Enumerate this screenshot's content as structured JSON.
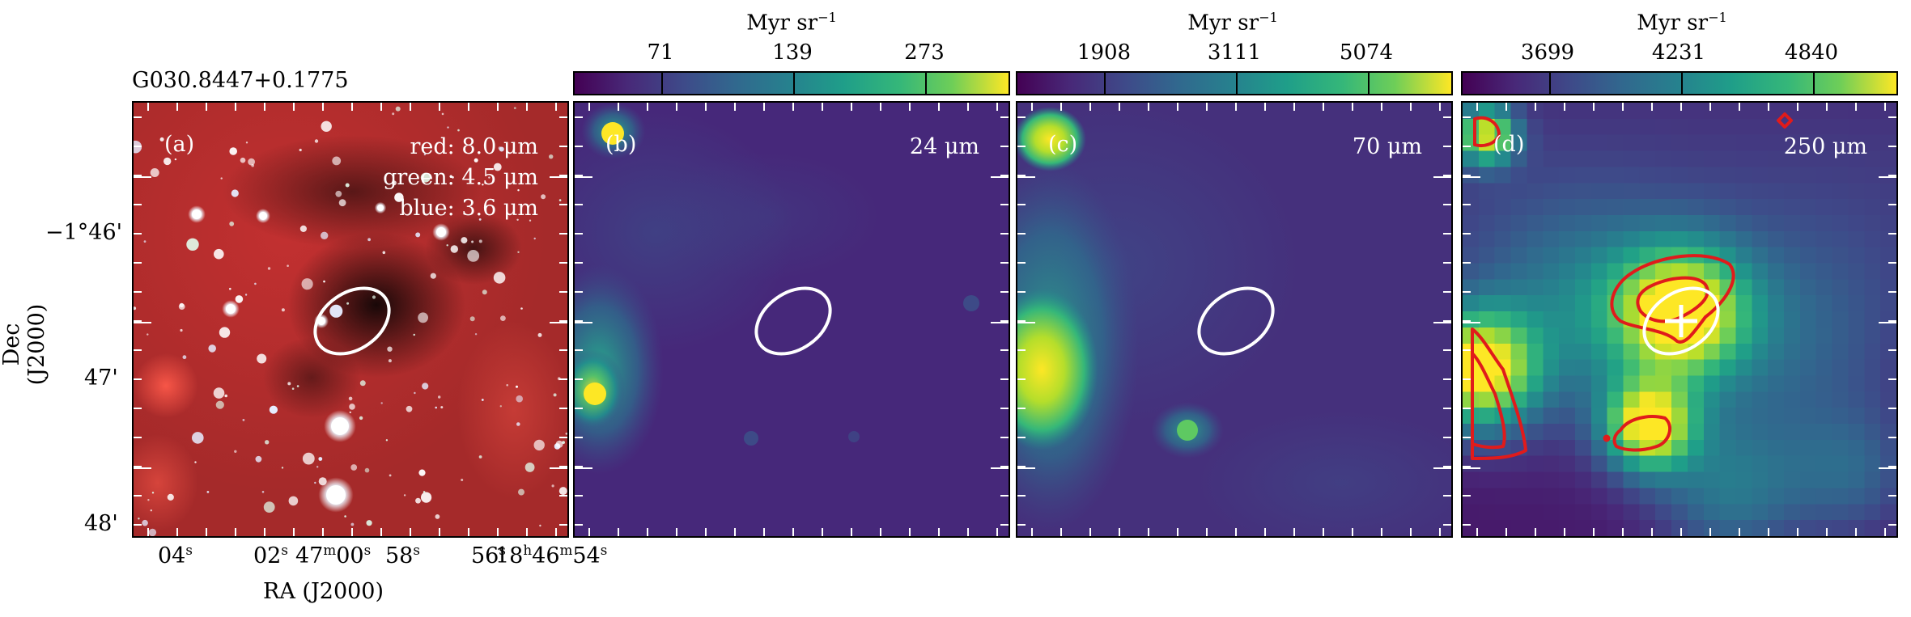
{
  "figure": {
    "source_title": "G030.8447+0.1775",
    "dec_axis_label": "Dec (J2000)",
    "ra_axis_label": "RA (J2000)",
    "dec_ticks": [
      {
        "deg": "−1°46'"
      },
      {
        "deg": "47'"
      },
      {
        "deg": "48'"
      }
    ],
    "ra_ticks": [
      {
        "main": "04",
        "sup": "s"
      },
      {
        "main": "02",
        "sup": "s"
      },
      {
        "main": "47",
        "sup1": "m",
        "main2": "00",
        "sup2": "s"
      },
      {
        "main": "58",
        "sup": "s"
      },
      {
        "main": "56",
        "sup": "s"
      },
      {
        "main": "18",
        "sup1": "h",
        "main2": "46",
        "sup2": "m",
        "main3": "54",
        "sup3": "s"
      }
    ],
    "panels": [
      {
        "label": "(a)",
        "legend": [
          "red: 8.0 μm",
          "green: 4.5 μm",
          "blue: 3.6 μm"
        ]
      },
      {
        "label": "(b)",
        "wavelength": "24 μm",
        "colorbar": {
          "unit": "Myr sr",
          "unit_exp": "−1",
          "ticks": [
            "71",
            "139",
            "273"
          ]
        }
      },
      {
        "label": "(c)",
        "wavelength": "70 μm",
        "colorbar": {
          "unit": "Myr sr",
          "unit_exp": "−1",
          "ticks": [
            "1908",
            "3111",
            "5074"
          ]
        }
      },
      {
        "label": "(d)",
        "wavelength": "250 μm",
        "colorbar": {
          "unit": "Myr sr",
          "unit_exp": "−1",
          "ticks": [
            "3699",
            "4231",
            "4840"
          ]
        }
      }
    ],
    "colors": {
      "contour": "#e01b1b",
      "ellipse": "#ffffff",
      "viridis_low": "#440154",
      "viridis_mid": "#21908d",
      "viridis_high": "#fde725"
    }
  }
}
